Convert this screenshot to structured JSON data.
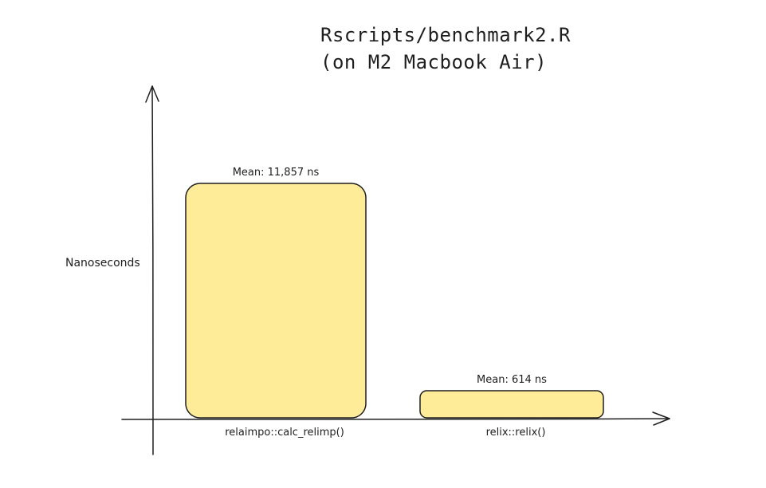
{
  "chart_data": {
    "type": "bar",
    "title": "Rscripts/benchmark2.R",
    "subtitle": "(on M2 Macbook Air)",
    "xlabel": "",
    "ylabel": "Nanoseconds",
    "categories": [
      "relaimpo::calc_relimp()",
      "relix::relix()"
    ],
    "values": [
      11857,
      614
    ],
    "data_labels": [
      "Mean: 11,857 ns",
      "Mean: 614 ns"
    ],
    "ylim": [
      0,
      15000
    ],
    "grid": false,
    "legend": "none",
    "colors": {
      "bar_fill": "#ffec99",
      "bar_stroke": "#1e1e1e",
      "axis": "#1e1e1e"
    }
  }
}
